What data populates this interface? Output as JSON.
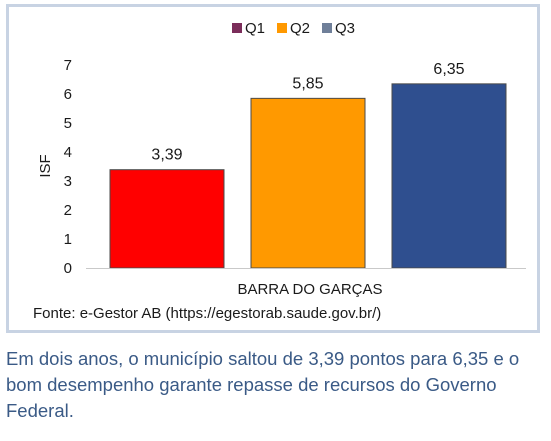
{
  "chart_data": {
    "type": "bar",
    "categories": [
      "BARRA DO GARÇAS"
    ],
    "series": [
      {
        "name": "Q1",
        "values": [
          3.39
        ],
        "label": "3,39",
        "color": "#ff0000"
      },
      {
        "name": "Q2",
        "values": [
          5.85
        ],
        "label": "5,85",
        "color": "#ff9900"
      },
      {
        "name": "Q3",
        "values": [
          6.35
        ],
        "label": "6,35",
        "color": "#2f4f8f"
      }
    ],
    "legend_colors": [
      "#7b2d5a",
      "#ff9900",
      "#6f7f99"
    ],
    "title": "",
    "xlabel": "",
    "ylabel": "ISF",
    "ylim": [
      0,
      7
    ],
    "yticks": [
      0,
      1,
      2,
      3,
      4,
      5,
      6,
      7
    ],
    "grid": false,
    "legend_position": "top"
  },
  "source": "Fonte: e-Gestor AB (https://egestorab.saude.gov.br/)",
  "caption": "Em dois anos, o município saltou de 3,39 pontos para 6,35 e o bom desempenho garante repasse de recursos do Governo Federal."
}
